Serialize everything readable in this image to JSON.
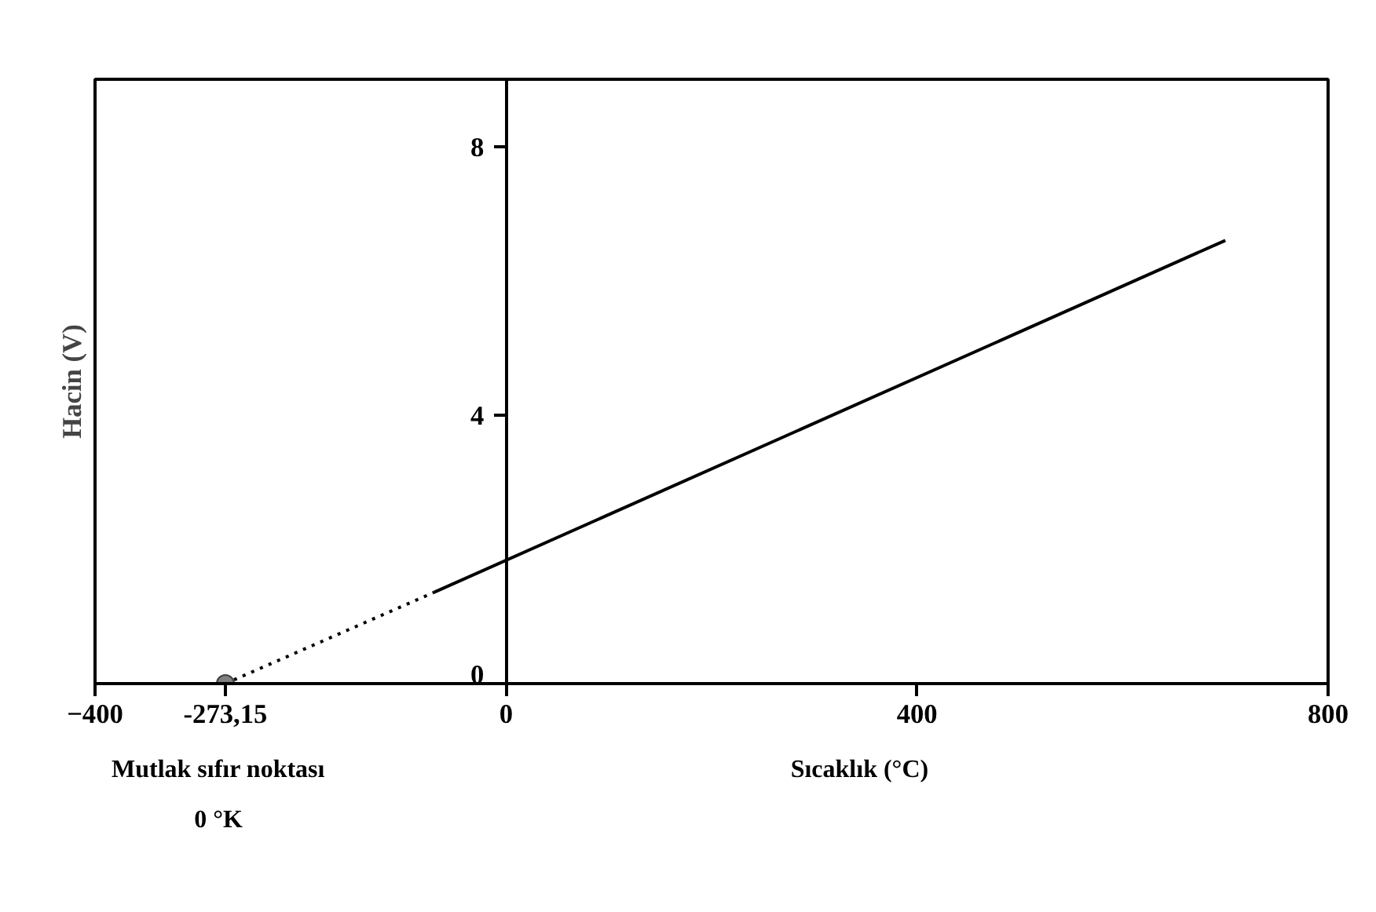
{
  "chart_data": {
    "type": "line",
    "xlabel": "Sıcaklık (°C)",
    "ylabel": "Hacin (V)",
    "xlim": [
      -400,
      800
    ],
    "xticks": [
      -400,
      {
        "value": -273.15,
        "label": "-273,15"
      },
      0,
      400,
      800
    ],
    "ylim": [
      0,
      9
    ],
    "yticks": [
      0,
      4,
      8
    ],
    "grid": false,
    "series": [
      {
        "line_style": "dotted",
        "color": "#000000",
        "x": [
          -273.15,
          -70
        ],
        "values": [
          0,
          1.36
        ]
      },
      {
        "line_style": "solid",
        "color": "#000000",
        "x": [
          -70,
          700
        ],
        "values": [
          1.36,
          6.6
        ]
      },
      {
        "type": "scatter",
        "marker": "circle",
        "color": "#808080",
        "x": [
          -273.15
        ],
        "values": [
          0
        ]
      }
    ],
    "annotations": [
      "Mutlak sıfır noktası",
      "0 °K"
    ]
  }
}
